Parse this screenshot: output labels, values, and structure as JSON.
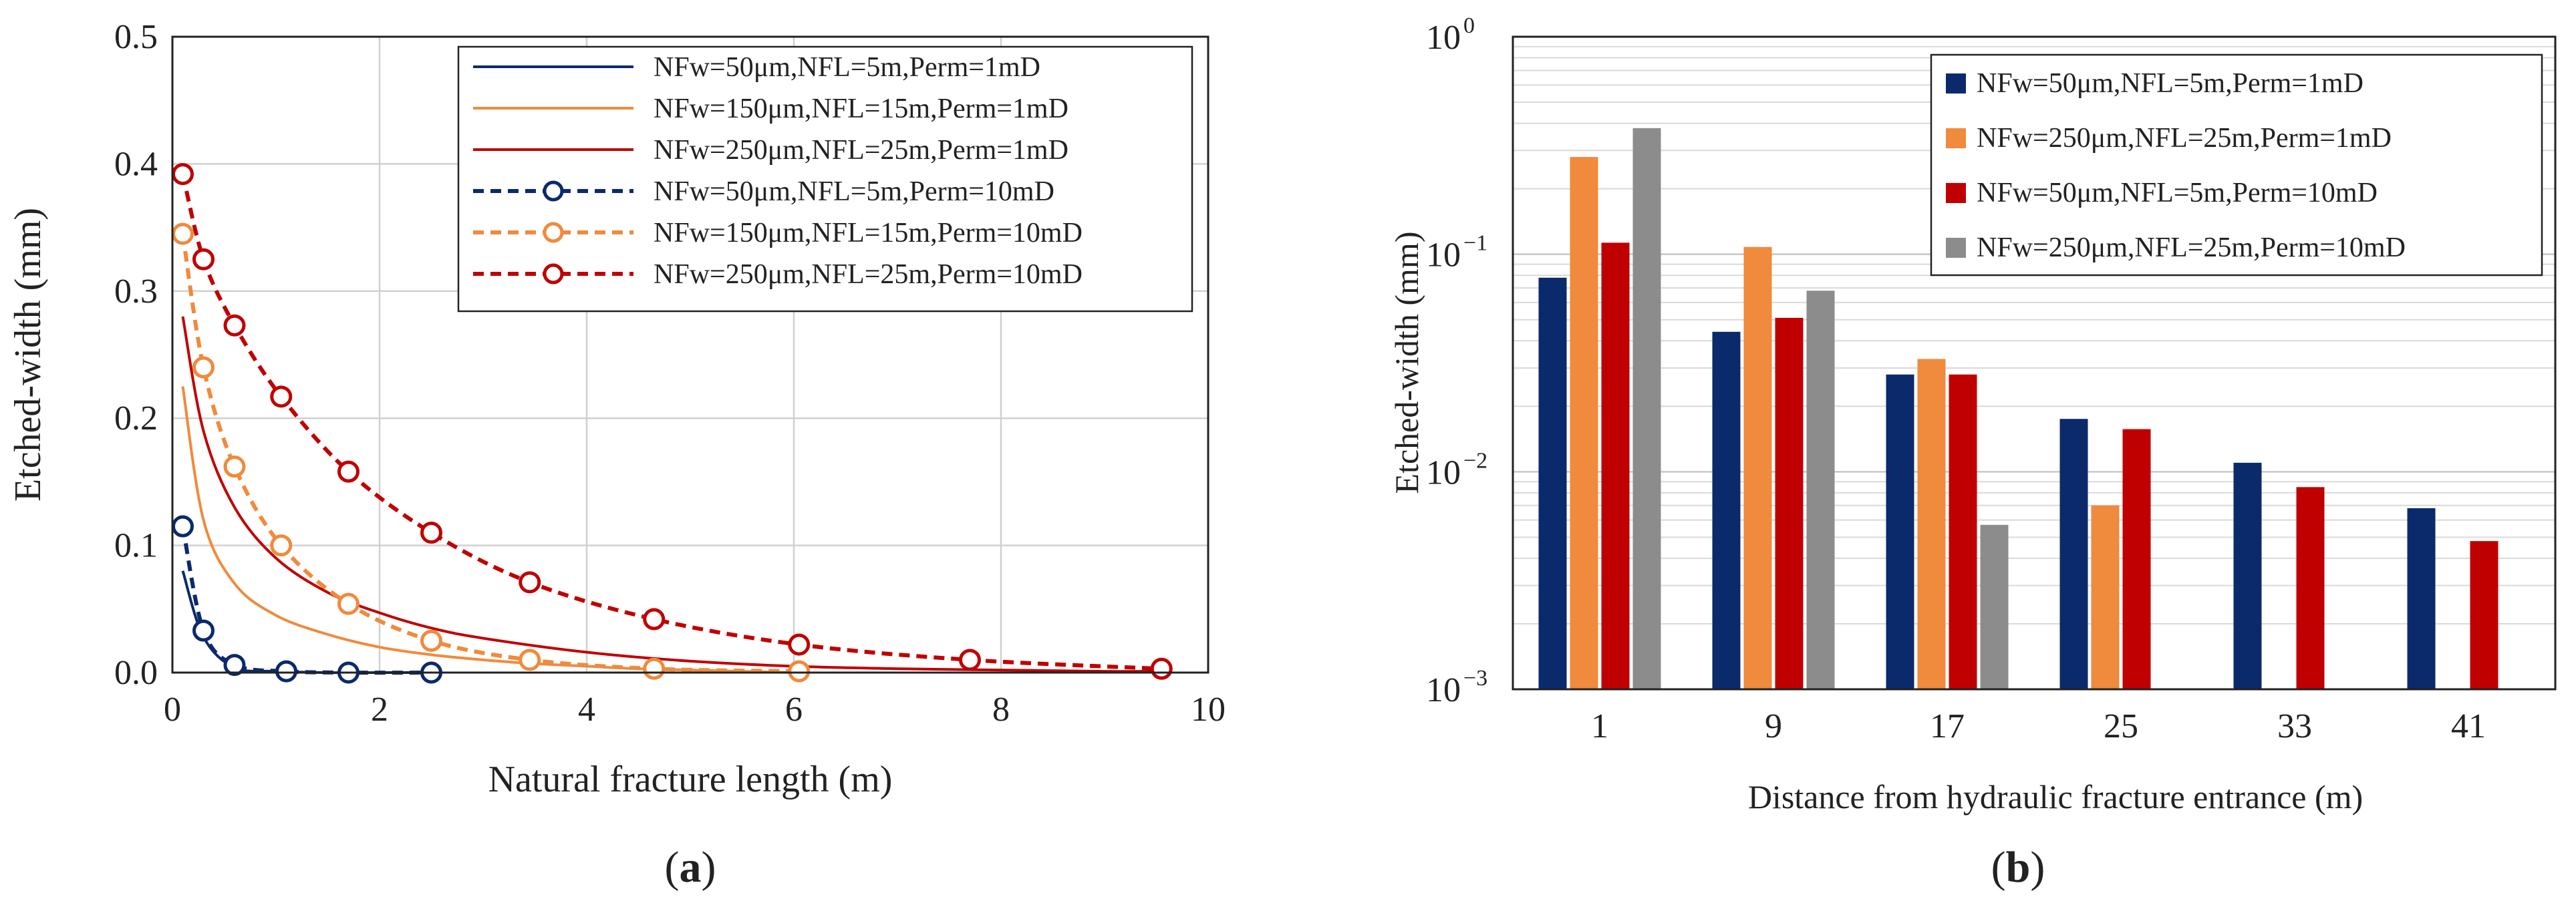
{
  "chart_data": [
    {
      "id": "a",
      "type": "line",
      "panel_label": "a",
      "xlabel": "Natural fracture length (m)",
      "ylabel": "Etched-width (mm)",
      "xlim": [
        0,
        10
      ],
      "ylim": [
        0,
        0.5
      ],
      "xticks": [
        0,
        2,
        4,
        6,
        8,
        10
      ],
      "yticks": [
        "0.0",
        "0.1",
        "0.2",
        "0.3",
        "0.4",
        "0.5"
      ],
      "grid": true,
      "legend_position": "top-right",
      "series": [
        {
          "name": "NFw=50μm,NFL=5m,Perm=1mD",
          "color": "#0b2a6b",
          "dash": false,
          "markers": false,
          "x": [
            0.1,
            0.3,
            0.6,
            1.0,
            1.5,
            2.0,
            2.5
          ],
          "y": [
            0.08,
            0.028,
            0.004,
            0.001,
            0.0,
            0.0,
            0.0
          ]
        },
        {
          "name": "NFw=150μm,NFL=15m,Perm=1mD",
          "color": "#f08a3c",
          "dash": false,
          "markers": false,
          "x": [
            0.1,
            0.3,
            0.6,
            1.0,
            1.5,
            2.0,
            2.5,
            3.0,
            3.5,
            4.0,
            4.5,
            5.0,
            5.5,
            6.0
          ],
          "y": [
            0.225,
            0.12,
            0.07,
            0.045,
            0.03,
            0.02,
            0.014,
            0.01,
            0.007,
            0.005,
            0.003,
            0.002,
            0.001,
            0.0
          ]
        },
        {
          "name": "NFw=250μm,NFL=25m,Perm=1mD",
          "color": "#c00000",
          "dash": false,
          "markers": false,
          "x": [
            0.1,
            0.3,
            0.6,
            1.0,
            1.5,
            2.0,
            2.5,
            3.0,
            4.0,
            5.0,
            6.0,
            7.0,
            8.0,
            9.0,
            9.5
          ],
          "y": [
            0.28,
            0.19,
            0.13,
            0.09,
            0.063,
            0.047,
            0.035,
            0.027,
            0.016,
            0.009,
            0.005,
            0.003,
            0.002,
            0.001,
            0.001
          ]
        },
        {
          "name": "NFw=50μm,NFL=5m,Perm=10mD",
          "color": "#0b2a6b",
          "dash": true,
          "markers": true,
          "x": [
            0.1,
            0.3,
            0.6,
            1.1,
            1.7,
            2.5
          ],
          "y": [
            0.115,
            0.033,
            0.006,
            0.001,
            0.0,
            0.0
          ]
        },
        {
          "name": "NFw=150μm,NFL=15m,Perm=10mD",
          "color": "#f08a3c",
          "dash": true,
          "markers": true,
          "x": [
            0.1,
            0.3,
            0.6,
            1.05,
            1.7,
            2.5,
            3.45,
            4.65,
            6.05
          ],
          "y": [
            0.345,
            0.24,
            0.162,
            0.1,
            0.054,
            0.025,
            0.01,
            0.003,
            0.001
          ]
        },
        {
          "name": "NFw=250μm,NFL=25m,Perm=10mD",
          "color": "#c00000",
          "dash": true,
          "markers": true,
          "x": [
            0.1,
            0.3,
            0.6,
            1.05,
            1.7,
            2.5,
            3.45,
            4.65,
            6.05,
            7.7,
            9.55
          ],
          "y": [
            0.392,
            0.325,
            0.273,
            0.217,
            0.158,
            0.11,
            0.071,
            0.042,
            0.022,
            0.01,
            0.003
          ]
        }
      ]
    },
    {
      "id": "b",
      "type": "bar",
      "panel_label": "b",
      "xlabel": "Distance from hydraulic  fracture entrance (m)",
      "ylabel": "Etched-width (mm)",
      "yscale": "log",
      "ylim": [
        0.001,
        1
      ],
      "yticks": [
        {
          "value": 0.001,
          "base": "10",
          "exp": "−3"
        },
        {
          "value": 0.01,
          "base": "10",
          "exp": "−2"
        },
        {
          "value": 0.1,
          "base": "10",
          "exp": "−1"
        },
        {
          "value": 1,
          "base": "10",
          "exp": "0"
        }
      ],
      "grid": true,
      "legend_position": "top-right",
      "categories": [
        "1",
        "9",
        "17",
        "25",
        "33",
        "41"
      ],
      "series": [
        {
          "name": "NFw=50μm,NFL=5m,Perm=1mD",
          "color": "#0b2a6b",
          "values": [
            0.078,
            0.044,
            0.028,
            0.0175,
            0.011,
            0.0068
          ]
        },
        {
          "name": "NFw=250μm,NFL=25m,Perm=1mD",
          "color": "#f08a3c",
          "values": [
            0.28,
            0.108,
            0.033,
            0.007,
            null,
            null
          ]
        },
        {
          "name": "NFw=50μm,NFL=5m,Perm=10mD",
          "color": "#c00000",
          "values": [
            0.113,
            0.051,
            0.028,
            0.0157,
            0.0085,
            0.0048
          ]
        },
        {
          "name": "NFw=250μm,NFL=25m,Perm=10mD",
          "color": "#8c8c8c",
          "values": [
            0.38,
            0.068,
            0.0057,
            null,
            null,
            null
          ]
        }
      ]
    }
  ]
}
